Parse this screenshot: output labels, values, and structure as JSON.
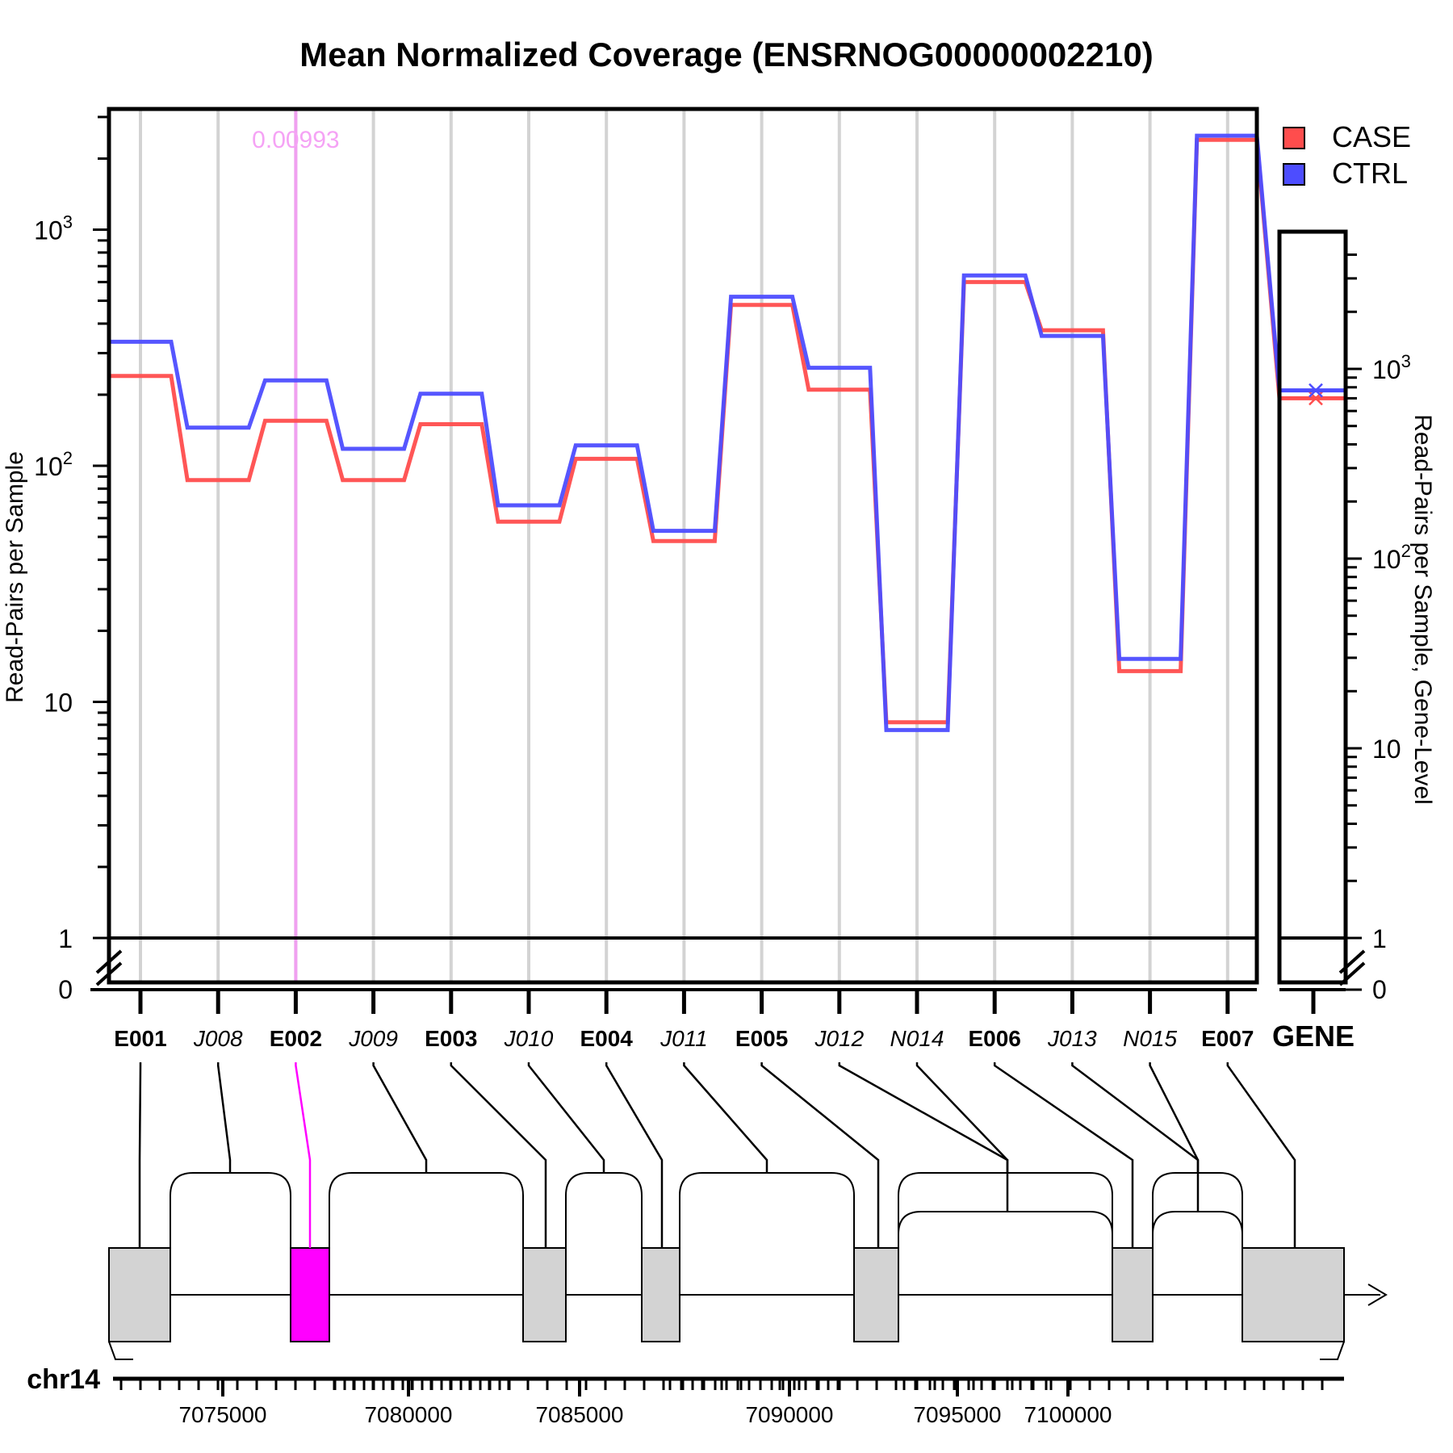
{
  "chart_data": {
    "type": "line",
    "title": "Mean Normalized Coverage (ENSRNOG00000002210)",
    "ylabel": "Read-Pairs per Sample",
    "ylabel_right": "Read-Pairs per Sample, Gene-Level",
    "yscale": "log",
    "ylim": [
      1,
      3000
    ],
    "features": [
      {
        "id": "E001",
        "kind": "exon"
      },
      {
        "id": "J008",
        "kind": "junction"
      },
      {
        "id": "E002",
        "kind": "exon"
      },
      {
        "id": "J009",
        "kind": "junction"
      },
      {
        "id": "E003",
        "kind": "exon"
      },
      {
        "id": "J010",
        "kind": "junction"
      },
      {
        "id": "E004",
        "kind": "exon"
      },
      {
        "id": "J011",
        "kind": "junction"
      },
      {
        "id": "E005",
        "kind": "exon"
      },
      {
        "id": "J012",
        "kind": "junction"
      },
      {
        "id": "N014",
        "kind": "novel"
      },
      {
        "id": "E006",
        "kind": "exon"
      },
      {
        "id": "J013",
        "kind": "junction"
      },
      {
        "id": "N015",
        "kind": "novel"
      },
      {
        "id": "E007",
        "kind": "exon"
      }
    ],
    "series": [
      {
        "name": "CASE",
        "color": "#ff4d4d",
        "values": [
          240,
          87,
          155,
          87,
          150,
          58,
          107,
          48,
          480,
          210,
          8.2,
          600,
          375,
          13.5,
          2400
        ],
        "gene_level": 700
      },
      {
        "name": "CTRL",
        "color": "#4d4dff",
        "values": [
          335,
          145,
          230,
          118,
          202,
          68,
          122,
          53,
          520,
          260,
          7.6,
          640,
          355,
          15.2,
          2500
        ],
        "gene_level": 770
      }
    ],
    "left_ticks": [
      {
        "label": "1",
        "value": 1
      },
      {
        "label": "10",
        "value": 10
      },
      {
        "label": "10",
        "sup": "2",
        "value": 100
      },
      {
        "label": "10",
        "sup": "3",
        "value": 1000
      },
      {
        "label": "0",
        "value": 0
      }
    ],
    "right_ticks": [
      {
        "label": "1",
        "value": 1
      },
      {
        "label": "10",
        "value": 10
      },
      {
        "label": "10",
        "sup": "2",
        "value": 100
      },
      {
        "label": "10",
        "sup": "3",
        "value": 1000
      },
      {
        "label": "0",
        "value": 0
      }
    ],
    "gene_label": "GENE",
    "highlight": {
      "feature": "E002",
      "pvalue_label": "0.00993",
      "color": "#ff00ff"
    },
    "legend_position": "top-right",
    "chromosome": "chr14",
    "genomic_ticks": [
      7075000,
      7080000,
      7085000,
      7090000,
      7095000,
      7100000
    ],
    "genomic_tick_labels": [
      "7075000",
      "7080000",
      "7085000",
      "7090000",
      "7095000",
      "7100000"
    ]
  }
}
